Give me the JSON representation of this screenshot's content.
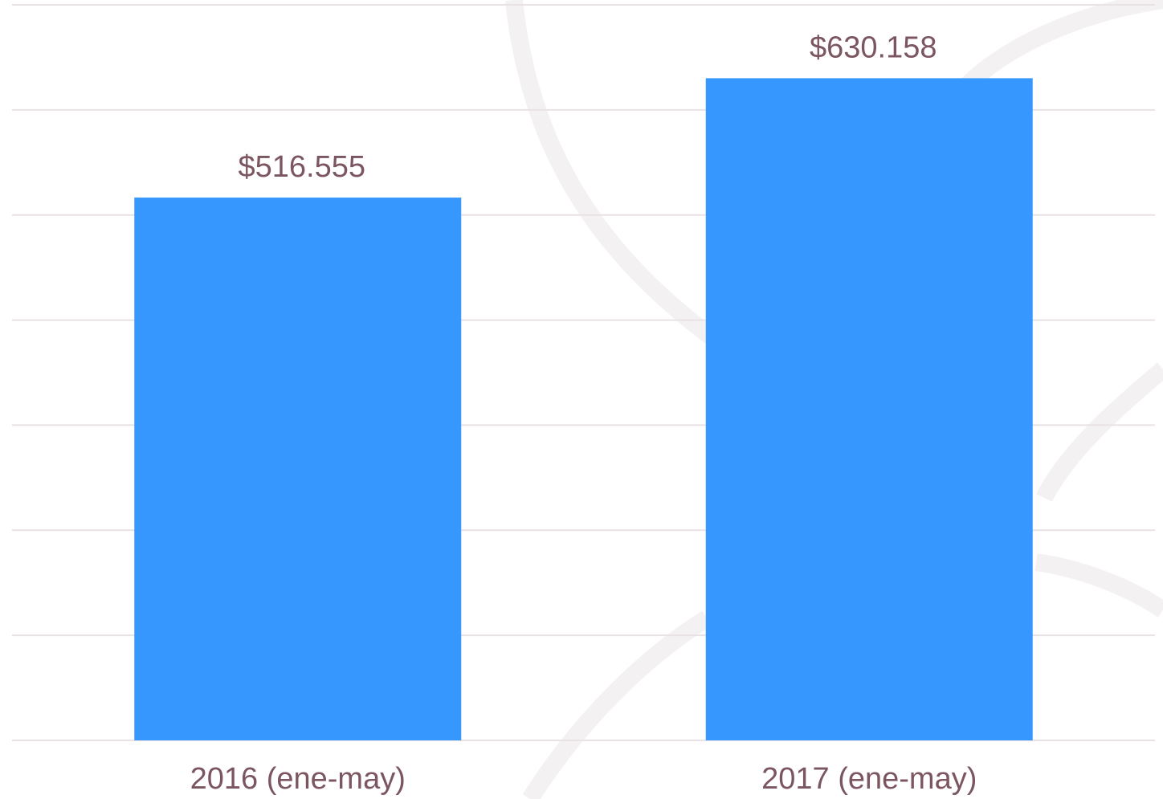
{
  "chart_data": {
    "type": "bar",
    "categories": [
      "2016 (ene-may)",
      "2017 (ene-may)"
    ],
    "values": [
      516555,
      630158
    ],
    "value_labels": [
      "$516.555",
      "$630.158"
    ],
    "color": "#3698fe",
    "ylim": [
      0,
      700000
    ],
    "yticks": [
      0,
      100000,
      200000,
      300000,
      400000,
      500000,
      600000,
      700000
    ],
    "grid": true
  }
}
